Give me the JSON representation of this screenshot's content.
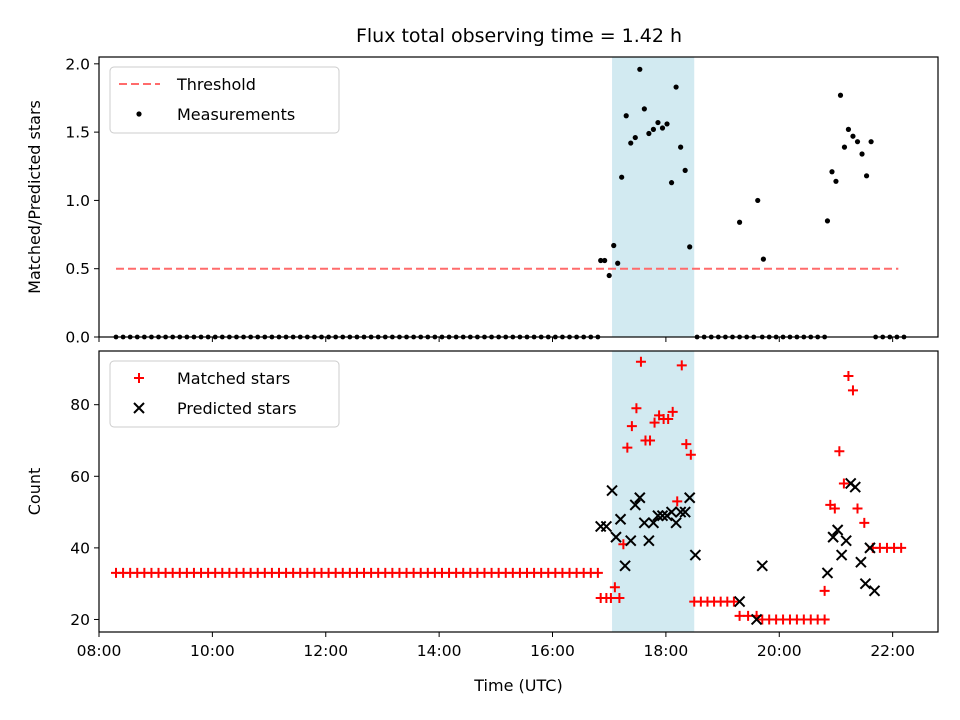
{
  "title": "Flux total observing time = 1.42 h",
  "colors": {
    "threshold": "#ff6b6b",
    "measurement": "#000000",
    "matched": "#ff0000",
    "predicted": "#000000",
    "span": "#add8e6"
  },
  "chart_data": [
    {
      "type": "scatter",
      "panel": "top",
      "ylabel": "Matched/Predicted stars",
      "xlabel": "",
      "xlim": [
        8.0,
        22.8
      ],
      "ylim": [
        0.0,
        2.05
      ],
      "yticks": [
        0.0,
        0.5,
        1.0,
        1.5,
        2.0
      ],
      "ytick_labels": [
        "0.0",
        "0.5",
        "1.0",
        "1.5",
        "2.0"
      ],
      "xticks": [
        8,
        10,
        12,
        14,
        16,
        18,
        20,
        22
      ],
      "xtick_labels": [
        "08:00",
        "10:00",
        "12:00",
        "14:00",
        "16:00",
        "18:00",
        "20:00",
        "22:00"
      ],
      "span": [
        17.05,
        18.5
      ],
      "legend_position": "top-left",
      "threshold": {
        "name": "Threshold",
        "y": 0.5,
        "x": [
          8.3,
          22.1
        ]
      },
      "measurements": {
        "name": "Measurements",
        "zero_runs": [
          [
            8.3,
            16.8
          ],
          [
            18.55,
            19.55
          ],
          [
            19.7,
            20.8
          ],
          [
            21.7,
            22.2
          ]
        ],
        "points": [
          [
            16.85,
            0.56
          ],
          [
            16.92,
            0.56
          ],
          [
            17.0,
            0.45
          ],
          [
            17.08,
            0.67
          ],
          [
            17.15,
            0.54
          ],
          [
            17.22,
            1.17
          ],
          [
            17.3,
            1.62
          ],
          [
            17.38,
            1.42
          ],
          [
            17.46,
            1.46
          ],
          [
            17.54,
            1.96
          ],
          [
            17.62,
            1.67
          ],
          [
            17.7,
            1.49
          ],
          [
            17.78,
            1.52
          ],
          [
            17.86,
            1.57
          ],
          [
            17.94,
            1.53
          ],
          [
            18.02,
            1.56
          ],
          [
            18.1,
            1.13
          ],
          [
            18.18,
            1.83
          ],
          [
            18.26,
            1.39
          ],
          [
            18.34,
            1.22
          ],
          [
            18.42,
            0.66
          ],
          [
            19.3,
            0.84
          ],
          [
            19.62,
            1.0
          ],
          [
            19.72,
            0.57
          ],
          [
            20.85,
            0.85
          ],
          [
            20.93,
            1.21
          ],
          [
            21.0,
            1.14
          ],
          [
            21.08,
            1.77
          ],
          [
            21.15,
            1.39
          ],
          [
            21.22,
            1.52
          ],
          [
            21.3,
            1.47
          ],
          [
            21.38,
            1.43
          ],
          [
            21.46,
            1.34
          ],
          [
            21.54,
            1.18
          ],
          [
            21.62,
            1.43
          ]
        ]
      }
    },
    {
      "type": "scatter",
      "panel": "bottom",
      "ylabel": "Count",
      "xlabel": "Time (UTC)",
      "xlim": [
        8.0,
        22.8
      ],
      "ylim": [
        16.5,
        95.0
      ],
      "yticks": [
        20,
        40,
        60,
        80
      ],
      "ytick_labels": [
        "20",
        "40",
        "60",
        "80"
      ],
      "xticks": [
        8,
        10,
        12,
        14,
        16,
        18,
        20,
        22
      ],
      "xtick_labels": [
        "08:00",
        "10:00",
        "12:00",
        "14:00",
        "16:00",
        "18:00",
        "20:00",
        "22:00"
      ],
      "span": [
        17.05,
        18.5
      ],
      "legend_position": "top-left",
      "series": [
        {
          "name": "Matched stars",
          "marker": "plus",
          "runs": [
            [
              8.3,
              16.8,
              33
            ],
            [
              18.5,
              19.2,
              25
            ],
            [
              19.3,
              19.6,
              21
            ],
            [
              19.7,
              20.8,
              20
            ],
            [
              21.65,
              22.15,
              40
            ]
          ],
          "points": [
            [
              16.85,
              26
            ],
            [
              16.95,
              26
            ],
            [
              17.03,
              26
            ],
            [
              17.1,
              29
            ],
            [
              17.18,
              26
            ],
            [
              17.25,
              41
            ],
            [
              17.32,
              68
            ],
            [
              17.4,
              74
            ],
            [
              17.48,
              79
            ],
            [
              17.56,
              92
            ],
            [
              17.64,
              70
            ],
            [
              17.72,
              70
            ],
            [
              17.8,
              75
            ],
            [
              17.88,
              77
            ],
            [
              17.96,
              76
            ],
            [
              18.04,
              76
            ],
            [
              18.12,
              78
            ],
            [
              18.2,
              53
            ],
            [
              18.28,
              91
            ],
            [
              18.36,
              69
            ],
            [
              18.44,
              66
            ],
            [
              20.8,
              28
            ],
            [
              20.9,
              52
            ],
            [
              20.98,
              51
            ],
            [
              21.06,
              67
            ],
            [
              21.14,
              58
            ],
            [
              21.22,
              88
            ],
            [
              21.3,
              84
            ],
            [
              21.38,
              51
            ],
            [
              21.5,
              47
            ]
          ]
        },
        {
          "name": "Predicted stars",
          "marker": "x",
          "points": [
            [
              16.85,
              46
            ],
            [
              16.95,
              46
            ],
            [
              17.05,
              56
            ],
            [
              17.12,
              43
            ],
            [
              17.2,
              48
            ],
            [
              17.28,
              35
            ],
            [
              17.38,
              42
            ],
            [
              17.46,
              52
            ],
            [
              17.54,
              54
            ],
            [
              17.62,
              47
            ],
            [
              17.7,
              42
            ],
            [
              17.78,
              47
            ],
            [
              17.86,
              49
            ],
            [
              17.94,
              49
            ],
            [
              18.02,
              49
            ],
            [
              18.1,
              50
            ],
            [
              18.18,
              47
            ],
            [
              18.26,
              50
            ],
            [
              18.34,
              50
            ],
            [
              18.42,
              54
            ],
            [
              18.52,
              38
            ],
            [
              19.3,
              25
            ],
            [
              19.6,
              20
            ],
            [
              19.7,
              35
            ],
            [
              20.85,
              33
            ],
            [
              20.95,
              43
            ],
            [
              21.03,
              45
            ],
            [
              21.1,
              38
            ],
            [
              21.18,
              42
            ],
            [
              21.26,
              58
            ],
            [
              21.34,
              57
            ],
            [
              21.44,
              36
            ],
            [
              21.52,
              30
            ],
            [
              21.6,
              40
            ],
            [
              21.68,
              28
            ]
          ]
        }
      ]
    }
  ]
}
